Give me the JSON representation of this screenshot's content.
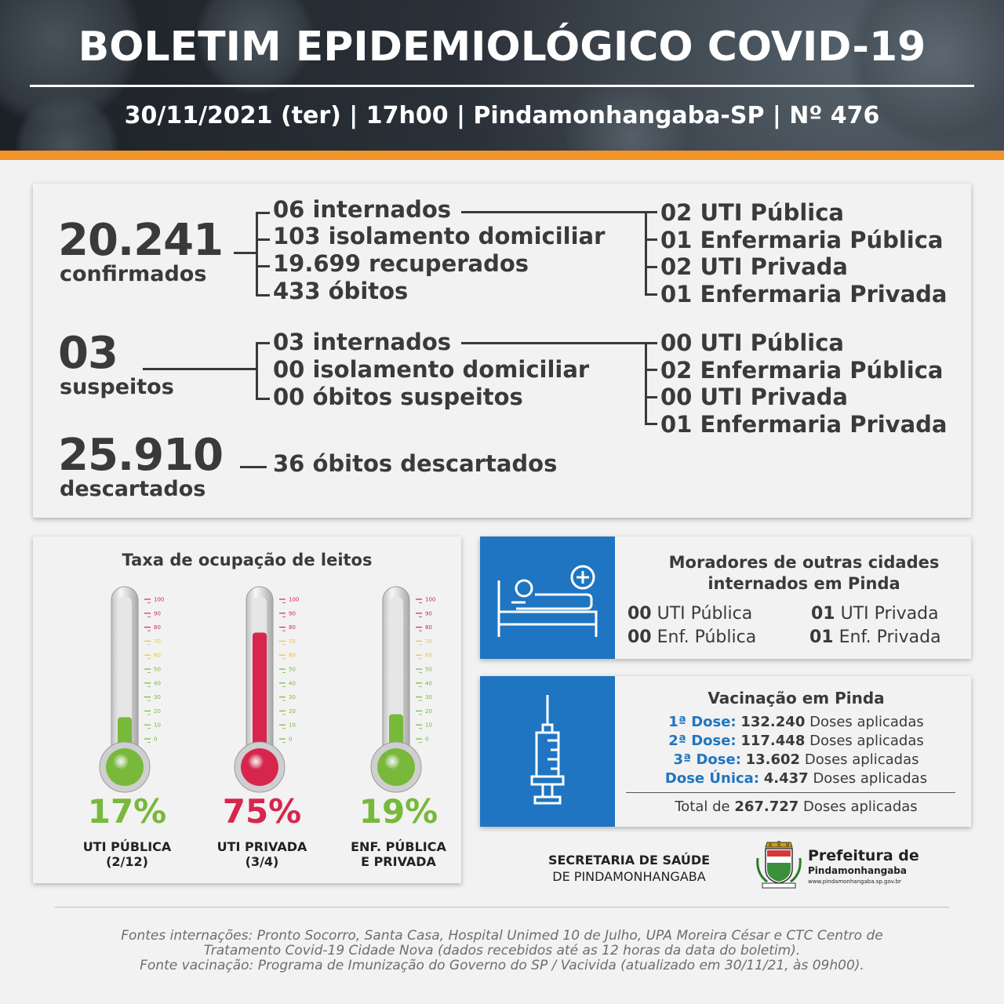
{
  "header": {
    "title": "BOLETIM EPIDEMIOLÓGICO COVID-19",
    "subtitle": "30/11/2021 (ter) | 17h00 | Pindamonhangaba-SP | Nº 476"
  },
  "confirmados": {
    "number": "20.241",
    "label": "confirmados",
    "items": [
      "06 internados",
      "103 isolamento domiciliar",
      "19.699 recuperados",
      "433 óbitos"
    ],
    "breakdown": [
      "02 UTI Pública",
      "01 Enfermaria Pública",
      "02 UTI Privada",
      "01 Enfermaria Privada"
    ]
  },
  "suspeitos": {
    "number": "03",
    "label": "suspeitos",
    "items": [
      "03 internados",
      "00 isolamento domiciliar",
      "00 óbitos suspeitos"
    ],
    "breakdown": [
      "00 UTI Pública",
      "02 Enfermaria Pública",
      "00 UTI Privada",
      "01 Enfermaria Privada"
    ]
  },
  "descartados": {
    "number": "25.910",
    "label": "descartados",
    "item": "36 óbitos descartados"
  },
  "ocupacao": {
    "title": "Taxa de ocupação de leitos",
    "thermometers": [
      {
        "percent_text": "17%",
        "value": 17,
        "label_line1": "UTI PÚBLICA",
        "label_line2": "(2/12)",
        "color": "#78b83b"
      },
      {
        "percent_text": "75%",
        "value": 75,
        "label_line1": "UTI PRIVADA",
        "label_line2": "(3/4)",
        "color": "#d7264e"
      },
      {
        "percent_text": "19%",
        "value": 19,
        "label_line1": "ENF. PÚBLICA",
        "label_line2": "E PRIVADA",
        "color": "#78b83b"
      }
    ],
    "scale_ticks": [
      "100",
      "90",
      "80",
      "70",
      "60",
      "50",
      "40",
      "30",
      "20",
      "10",
      "0"
    ]
  },
  "moradores": {
    "title_line1": "Moradores de outras cidades",
    "title_line2": "internados em Pinda",
    "cells": [
      {
        "value": "00",
        "label": "UTI Pública"
      },
      {
        "value": "01",
        "label": "UTI Privada"
      },
      {
        "value": "00",
        "label": "Enf. Pública"
      },
      {
        "value": "01",
        "label": "Enf. Privada"
      }
    ],
    "icon": "hospital-bed-icon"
  },
  "vacinacao": {
    "title": "Vacinação em Pinda",
    "rows": [
      {
        "dose": "1ª Dose:",
        "value": "132.240",
        "suffix": "Doses aplicadas"
      },
      {
        "dose": "2ª Dose:",
        "value": "117.448",
        "suffix": "Doses aplicadas"
      },
      {
        "dose": "3ª Dose:",
        "value": "13.602",
        "suffix": "Doses aplicadas"
      },
      {
        "dose": "Dose Única:",
        "value": "4.437",
        "suffix": "Doses aplicadas"
      }
    ],
    "total_prefix": "Total de",
    "total_value": "267.727",
    "total_suffix": "Doses aplicadas",
    "icon": "syringe-icon"
  },
  "secretaria": {
    "line1": "SECRETARIA DE SAÚDE",
    "line2": "DE PINDAMONHANGABA"
  },
  "prefeitura": {
    "line1": "Prefeitura de",
    "line2": "Pindamonhangaba",
    "url": "www.pindamonhangaba.sp.gov.br"
  },
  "fontes": {
    "line1": "Fontes internações: Pronto Socorro, Santa Casa, Hospital Unimed 10 de Julho, UPA Moreira César e CTC Centro de",
    "line2": "Tratamento Covid-19 Cidade Nova (dados recebidos até as 12 horas da data do boletim).",
    "line3": "Fonte vacinação: Programa de Imunização do Governo do SP / Vacivida (atualizado em 30/11/21, às 09h00)."
  },
  "colors": {
    "accent_orange": "#f0942a",
    "box_blue": "#1f75c1",
    "green": "#78b83b",
    "red": "#d7264e",
    "text_dark": "#3a3a3a"
  }
}
